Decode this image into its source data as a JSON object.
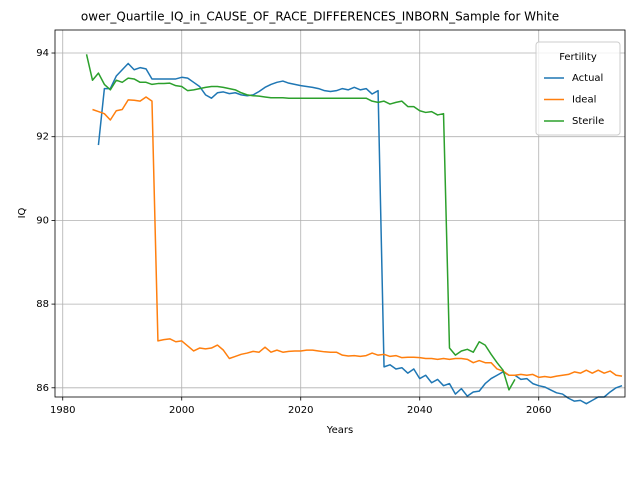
{
  "chart_data": {
    "type": "line",
    "title": "ower_Quartile_IQ_in_CAUSE_OF_RACE_DIFFERENCES_INBORN_Sample for White",
    "x_label": "Years",
    "y_label": "IQ",
    "x": [
      1984,
      1985,
      1986,
      1987,
      1988,
      1989,
      1990,
      1991,
      1992,
      1993,
      1994,
      1995,
      1996,
      1997,
      1998,
      1999,
      2000,
      2001,
      2002,
      2003,
      2004,
      2005,
      2006,
      2007,
      2008,
      2009,
      2010,
      2011,
      2012,
      2013,
      2014,
      2015,
      2016,
      2017,
      2018,
      2019,
      2020,
      2021,
      2022,
      2023,
      2024,
      2025,
      2026,
      2027,
      2028,
      2029,
      2030,
      2031,
      2032,
      2033,
      2034,
      2035,
      2036,
      2037,
      2038,
      2039,
      2040,
      2041,
      2042,
      2043,
      2044,
      2045,
      2046,
      2047,
      2048,
      2049,
      2050,
      2051,
      2052,
      2053,
      2054,
      2055,
      2056,
      2057,
      2058,
      2059,
      2060,
      2061,
      2062,
      2063,
      2064,
      2065,
      2066,
      2067,
      2068,
      2069,
      2070,
      2071,
      2072,
      2073,
      2074
    ],
    "series": [
      {
        "name": "Actual",
        "color": "#1f77b4",
        "values": [
          null,
          null,
          91.8,
          93.15,
          93.15,
          93.45,
          93.6,
          93.75,
          93.6,
          93.65,
          93.62,
          93.38,
          93.38,
          93.38,
          93.38,
          93.38,
          93.42,
          93.4,
          93.3,
          93.2,
          93.0,
          92.92,
          93.05,
          93.07,
          93.03,
          93.05,
          93.0,
          92.98,
          93.0,
          93.08,
          93.18,
          93.25,
          93.3,
          93.33,
          93.28,
          93.25,
          93.22,
          93.2,
          93.18,
          93.15,
          93.1,
          93.08,
          93.1,
          93.15,
          93.12,
          93.18,
          93.12,
          93.15,
          93.02,
          93.1,
          86.5,
          86.55,
          86.45,
          86.48,
          86.35,
          86.45,
          86.22,
          86.3,
          86.12,
          86.2,
          86.05,
          86.1,
          85.85,
          85.98,
          85.8,
          85.9,
          85.92,
          86.1,
          86.22,
          86.3,
          86.38,
          86.3,
          86.3,
          86.2,
          86.22,
          86.1,
          86.05,
          86.02,
          85.95,
          85.88,
          85.85,
          85.75,
          85.68,
          85.7,
          85.62,
          85.7,
          85.78,
          85.78,
          85.9,
          86.0,
          86.05
        ]
      },
      {
        "name": "Ideal",
        "color": "#ff7f0e",
        "values": [
          null,
          92.65,
          92.6,
          92.55,
          92.4,
          92.62,
          92.65,
          92.88,
          92.87,
          92.85,
          92.95,
          92.85,
          87.12,
          87.15,
          87.17,
          87.1,
          87.12,
          87.0,
          86.88,
          86.95,
          86.93,
          86.95,
          87.02,
          86.9,
          86.7,
          86.75,
          86.8,
          86.83,
          86.87,
          86.85,
          86.97,
          86.85,
          86.9,
          86.85,
          86.87,
          86.88,
          86.88,
          86.9,
          86.9,
          86.88,
          86.86,
          86.85,
          86.85,
          86.78,
          86.76,
          86.77,
          86.75,
          86.77,
          86.83,
          86.78,
          86.8,
          86.75,
          86.77,
          86.72,
          86.73,
          86.73,
          86.72,
          86.7,
          86.7,
          86.68,
          86.7,
          86.68,
          86.7,
          86.7,
          86.68,
          86.6,
          86.65,
          86.6,
          86.6,
          86.45,
          86.4,
          86.3,
          86.3,
          86.32,
          86.3,
          86.32,
          86.25,
          86.27,
          86.25,
          86.28,
          86.3,
          86.32,
          86.38,
          86.35,
          86.42,
          86.35,
          86.42,
          86.35,
          86.4,
          86.3,
          86.28
        ]
      },
      {
        "name": "Sterile",
        "color": "#2ca02c",
        "values": [
          93.97,
          93.35,
          93.52,
          93.25,
          93.12,
          93.35,
          93.3,
          93.4,
          93.38,
          93.3,
          93.3,
          93.25,
          93.27,
          93.27,
          93.28,
          93.22,
          93.2,
          93.1,
          93.12,
          93.15,
          93.18,
          93.2,
          93.2,
          93.18,
          93.15,
          93.12,
          93.05,
          93.0,
          92.98,
          92.97,
          92.95,
          92.93,
          92.93,
          92.93,
          92.92,
          92.92,
          92.92,
          92.92,
          92.92,
          92.92,
          92.92,
          92.92,
          92.92,
          92.92,
          92.92,
          92.92,
          92.92,
          92.92,
          92.85,
          92.82,
          92.85,
          92.78,
          92.82,
          92.85,
          92.72,
          92.72,
          92.62,
          92.58,
          92.6,
          92.52,
          92.55,
          86.95,
          86.78,
          86.88,
          86.92,
          86.85,
          87.1,
          87.02,
          86.8,
          86.6,
          86.42,
          85.95,
          86.2,
          null,
          null,
          null,
          null,
          null,
          null,
          null,
          null,
          null,
          null,
          null,
          null,
          null,
          null,
          null,
          null,
          null,
          null
        ]
      }
    ],
    "legend_title": "Fertility",
    "legend_loc": "upper right",
    "xlim": [
      1978.7,
      2074.5
    ],
    "ylim": [
      85.78,
      94.55
    ],
    "xticks": [
      1980,
      2000,
      2020,
      2040,
      2060
    ],
    "yticks": [
      86,
      88,
      90,
      92,
      94
    ],
    "grid": true
  }
}
